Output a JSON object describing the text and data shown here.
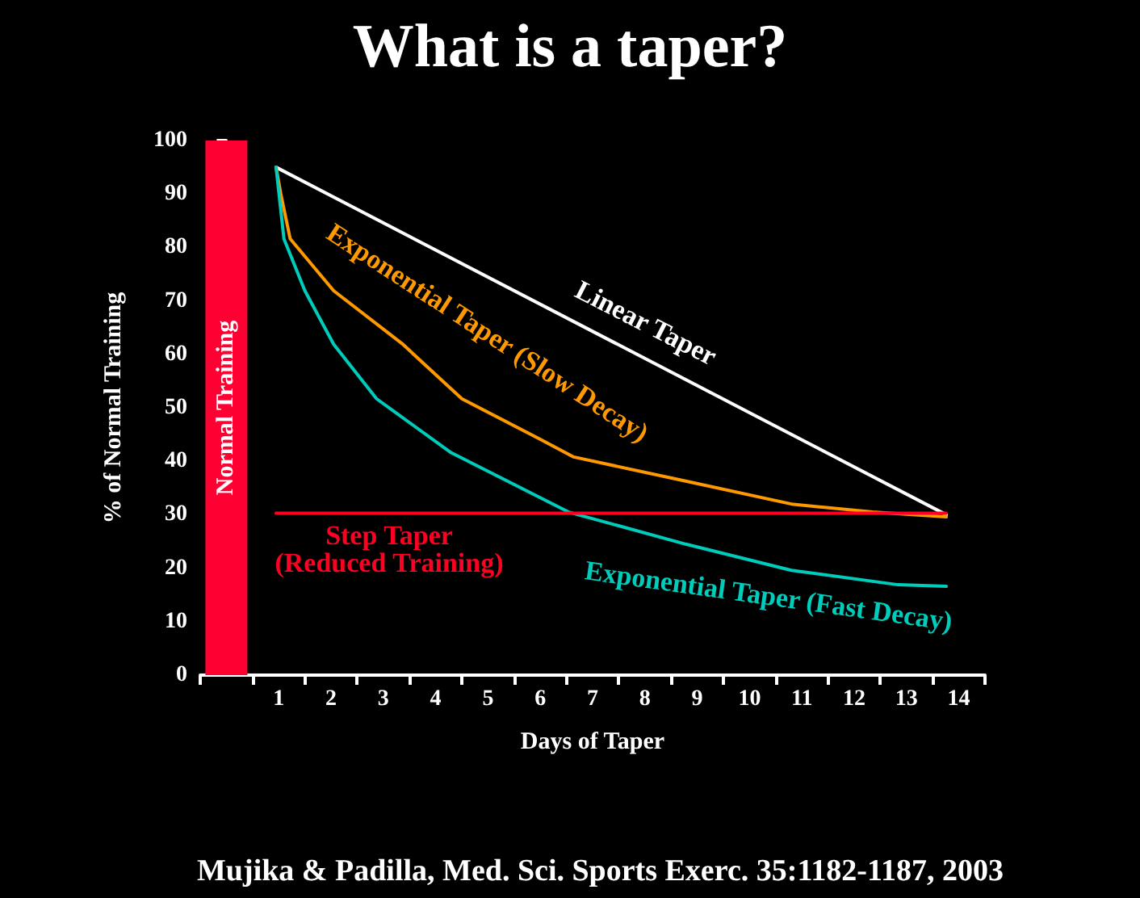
{
  "chart_data": {
    "type": "line",
    "title": "What is a taper?",
    "xlabel": "Days of Taper",
    "ylabel": "% of Normal Training",
    "annotations": [
      "Mujika & Padilla, Med. Sci. Sports Exerc. 35:1182-1187, 2003"
    ],
    "xlim": [
      -0.5,
      14.5
    ],
    "xticks": [
      {
        "value": -0.5,
        "label": null
      },
      {
        "value": 0.5,
        "label": null
      },
      1,
      {
        "value": 1.5,
        "label": null
      },
      2,
      {
        "value": 2.5,
        "label": null
      },
      3,
      {
        "value": 3.5,
        "label": null
      },
      4,
      {
        "value": 4.5,
        "label": null
      },
      5,
      {
        "value": 5.5,
        "label": null
      },
      6,
      {
        "value": 6.5,
        "label": null
      },
      7,
      {
        "value": 7.5,
        "label": null
      },
      8,
      {
        "value": 8.5,
        "label": null
      },
      9,
      {
        "value": 9.5,
        "label": null
      },
      10,
      {
        "value": 10.5,
        "label": null
      },
      11,
      {
        "value": 11.5,
        "label": null
      },
      12,
      {
        "value": 12.5,
        "label": null
      },
      13,
      {
        "value": 13.5,
        "label": null
      },
      14,
      {
        "value": 14.5,
        "label": null
      }
    ],
    "ylim": [
      0,
      100
    ],
    "yticks": [
      0,
      10,
      20,
      30,
      40,
      50,
      60,
      70,
      80,
      90,
      100
    ],
    "grid": false,
    "legend": false,
    "marker": "none",
    "series": [
      {
        "type": "bar",
        "name": "Normal Training",
        "color": "#ff0033",
        "x": [
          0
        ],
        "values": [
          100
        ]
      },
      {
        "name": "Linear Taper",
        "color": "#ffffff",
        "x": [
          0.95,
          13.76
        ],
        "values": [
          95,
          30
        ]
      },
      {
        "name": "Exponential Taper (Slow Decay)",
        "color": "#ff9900",
        "x": [
          0.95,
          1.04,
          1.22,
          2.05,
          3.36,
          4.5,
          6.0,
          6.64,
          8.78,
          10.8,
          12.35,
          13.76
        ],
        "values": [
          95,
          90,
          81.6,
          71.9,
          62,
          51.7,
          44.1,
          40.8,
          36.3,
          32,
          30.5,
          29.6
        ]
      },
      {
        "name": "Exponential Taper (Fast Decay)",
        "color": "#00ccbb",
        "x": [
          0.95,
          1.1,
          1.5,
          2.05,
          2.87,
          4.28,
          6.54,
          8.78,
          10.8,
          12.84,
          13.76
        ],
        "values": [
          95,
          81.6,
          71.9,
          61.9,
          51.7,
          41.7,
          30.5,
          24.5,
          19.6,
          16.9,
          16.6
        ]
      },
      {
        "name": "Step Taper\n(Reduced Training)",
        "color": "#ff0022",
        "x": [
          0.95,
          13.76
        ],
        "values": [
          30.3,
          30.3
        ]
      }
    ]
  }
}
